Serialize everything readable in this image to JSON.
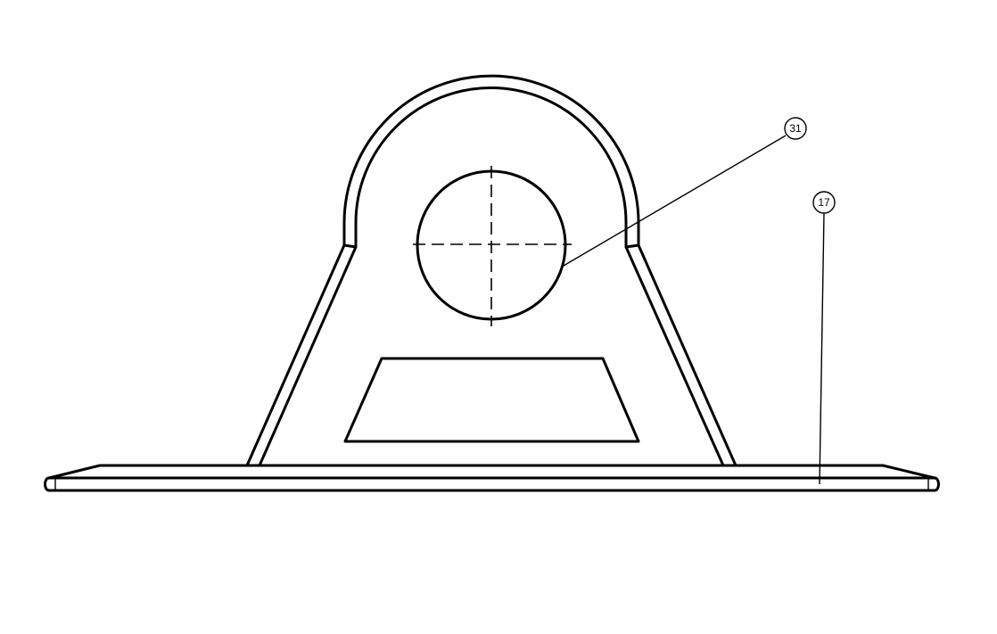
{
  "balloons": [
    {
      "id": "balloon-31",
      "label": "31"
    },
    {
      "id": "balloon-17",
      "label": "17"
    }
  ],
  "colors": {
    "line": "#000000",
    "background": "#ffffff"
  }
}
